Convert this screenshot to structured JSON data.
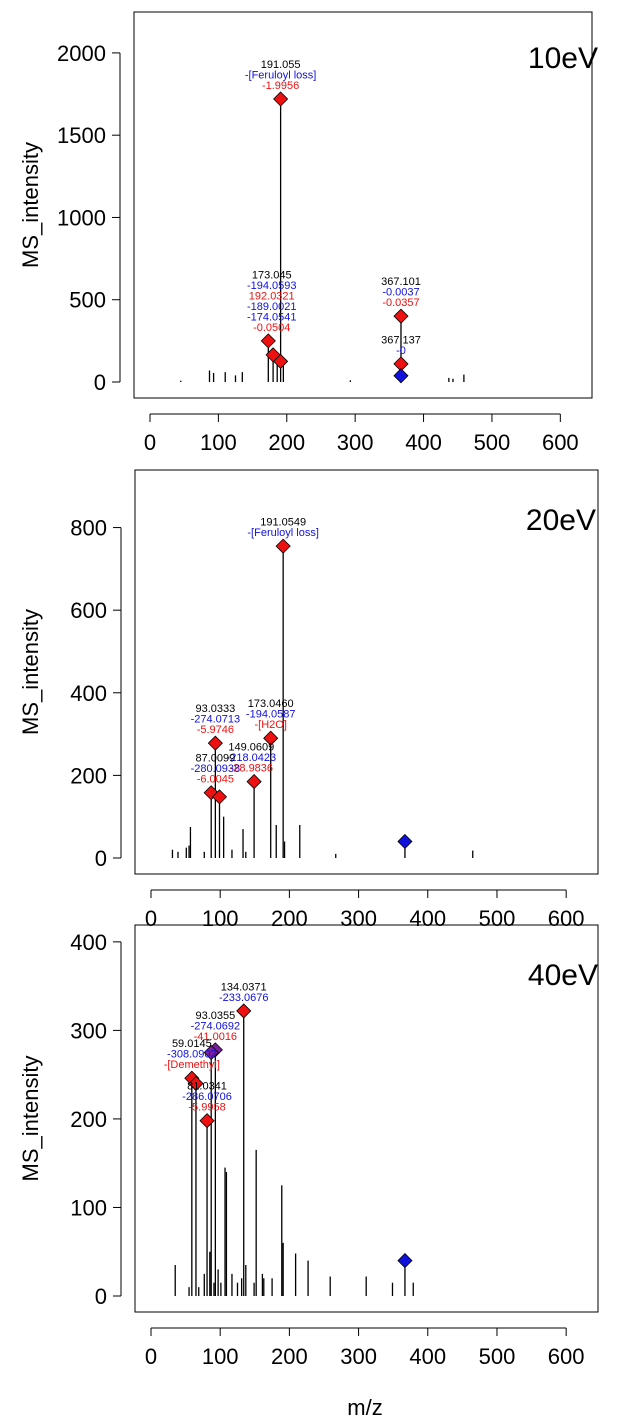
{
  "figure": {
    "xlabel": "m/z",
    "ylabel": "MS_intensity"
  },
  "chart_data": [
    {
      "type": "bar",
      "label": "10eV",
      "xlim": [
        0,
        620
      ],
      "ylim": [
        0,
        2200
      ],
      "xticks": [
        0,
        100,
        200,
        300,
        400,
        500,
        600
      ],
      "yticks": [
        0,
        500,
        1000,
        1500,
        2000
      ],
      "ylabel": "MS_intensity",
      "xlabel": "",
      "peaks": [
        [
          45,
          8
        ],
        [
          87,
          70
        ],
        [
          93,
          55
        ],
        [
          110,
          60
        ],
        [
          125,
          40
        ],
        [
          135,
          60
        ],
        [
          173,
          250
        ],
        [
          180,
          160
        ],
        [
          186,
          120
        ],
        [
          191,
          1720
        ],
        [
          195,
          100
        ],
        [
          293,
          10
        ],
        [
          367,
          400
        ],
        [
          368,
          110
        ],
        [
          437,
          25
        ],
        [
          443,
          20
        ],
        [
          459,
          45
        ]
      ],
      "markers": [
        {
          "x": 191,
          "y": 1720,
          "color": "red"
        },
        {
          "x": 173,
          "y": 250,
          "color": "red"
        },
        {
          "x": 180,
          "y": 165,
          "color": "red"
        },
        {
          "x": 191,
          "y": 125,
          "color": "red"
        },
        {
          "x": 367,
          "y": 400,
          "color": "red"
        },
        {
          "x": 367,
          "y": 110,
          "color": "red"
        },
        {
          "x": 367,
          "y": 38,
          "color": "blue"
        }
      ],
      "annotations": [
        {
          "x": 191,
          "y": 1720,
          "lines": [
            {
              "text": "191.055",
              "color": "black"
            },
            {
              "text": "-[Feruloyl loss]",
              "color": "blue"
            },
            {
              "text": "-1.9956",
              "color": "red"
            }
          ]
        },
        {
          "x": 178,
          "y": 250,
          "lines": [
            {
              "text": "173.045",
              "color": "black"
            },
            {
              "text": "-194.0593",
              "color": "blue"
            },
            {
              "text": "192.0321",
              "color": "red"
            },
            {
              "text": "-189.0021",
              "color": "blue"
            },
            {
              "text": "-174.0541",
              "color": "blue"
            },
            {
              "text": "-0.0504",
              "color": "red"
            }
          ]
        },
        {
          "x": 367,
          "y": 400,
          "lines": [
            {
              "text": "367.101",
              "color": "black"
            },
            {
              "text": "-0.0037",
              "color": "blue"
            },
            {
              "text": "-0.0357",
              "color": "red"
            }
          ]
        },
        {
          "x": 367,
          "y": 110,
          "lines": [
            {
              "text": "367.137",
              "color": "black"
            },
            {
              "text": "-0",
              "color": "blue"
            }
          ]
        }
      ]
    },
    {
      "type": "bar",
      "label": "20eV",
      "xlim": [
        0,
        620
      ],
      "ylim": [
        0,
        920
      ],
      "xticks": [
        0,
        100,
        200,
        300,
        400,
        500,
        600
      ],
      "yticks": [
        0,
        200,
        400,
        600,
        800
      ],
      "ylabel": "MS_intensity",
      "xlabel": "",
      "peaks": [
        [
          31,
          20
        ],
        [
          39,
          15
        ],
        [
          51,
          25
        ],
        [
          55,
          30
        ],
        [
          57,
          75
        ],
        [
          77,
          15
        ],
        [
          87,
          158
        ],
        [
          93,
          275
        ],
        [
          99,
          148
        ],
        [
          105,
          100
        ],
        [
          117,
          20
        ],
        [
          133,
          70
        ],
        [
          137,
          15
        ],
        [
          149,
          185
        ],
        [
          173,
          290
        ],
        [
          181,
          80
        ],
        [
          191,
          755
        ],
        [
          193,
          40
        ],
        [
          215,
          80
        ],
        [
          267,
          10
        ],
        [
          367,
          35
        ],
        [
          465,
          18
        ]
      ],
      "markers": [
        {
          "x": 191,
          "y": 755,
          "color": "red"
        },
        {
          "x": 173,
          "y": 290,
          "color": "red"
        },
        {
          "x": 93,
          "y": 278,
          "color": "red"
        },
        {
          "x": 149,
          "y": 185,
          "color": "red"
        },
        {
          "x": 87,
          "y": 158,
          "color": "red"
        },
        {
          "x": 99,
          "y": 148,
          "color": "red"
        },
        {
          "x": 367,
          "y": 40,
          "color": "blue"
        }
      ],
      "annotations": [
        {
          "x": 191,
          "y": 755,
          "lines": [
            {
              "text": "191.0549",
              "color": "black"
            },
            {
              "text": "-[Feruloyl loss]",
              "color": "blue"
            }
          ]
        },
        {
          "x": 173,
          "y": 290,
          "lines": [
            {
              "text": "173.0460",
              "color": "black"
            },
            {
              "text": "-194.0587",
              "color": "blue"
            },
            {
              "text": "-[H2O]",
              "color": "red"
            }
          ]
        },
        {
          "x": 93,
          "y": 278,
          "lines": [
            {
              "text": "93.0333",
              "color": "black"
            },
            {
              "text": "-274.0713",
              "color": "blue"
            },
            {
              "text": "-5.9746",
              "color": "red"
            }
          ]
        },
        {
          "x": 145,
          "y": 185,
          "lines": [
            {
              "text": "149.0609",
              "color": "black"
            },
            {
              "text": "-218.0423",
              "color": "blue"
            },
            {
              "text": "-28.9836",
              "color": "red"
            }
          ]
        },
        {
          "x": 93,
          "y": 158,
          "lines": [
            {
              "text": "87.0099",
              "color": "black"
            },
            {
              "text": "-280.0938",
              "color": "blue"
            },
            {
              "text": "-6.0045",
              "color": "red"
            }
          ]
        }
      ]
    },
    {
      "type": "bar",
      "label": "40eV",
      "xlim": [
        0,
        620
      ],
      "ylim": [
        0,
        410
      ],
      "xticks": [
        0,
        100,
        200,
        300,
        400,
        500,
        600
      ],
      "yticks": [
        0,
        100,
        200,
        300,
        400
      ],
      "ylabel": "MS_intensity",
      "xlabel": "m/z",
      "peaks": [
        [
          35,
          35
        ],
        [
          55,
          10
        ],
        [
          59,
          245
        ],
        [
          65,
          240
        ],
        [
          69,
          10
        ],
        [
          77,
          25
        ],
        [
          81,
          198
        ],
        [
          85,
          50
        ],
        [
          87,
          280
        ],
        [
          91,
          15
        ],
        [
          93,
          275
        ],
        [
          97,
          30
        ],
        [
          101,
          15
        ],
        [
          107,
          145
        ],
        [
          109,
          140
        ],
        [
          117,
          25
        ],
        [
          125,
          15
        ],
        [
          131,
          20
        ],
        [
          134,
          322
        ],
        [
          137,
          35
        ],
        [
          149,
          15
        ],
        [
          152,
          165
        ],
        [
          161,
          25
        ],
        [
          163,
          20
        ],
        [
          175,
          20
        ],
        [
          189,
          125
        ],
        [
          191,
          60
        ],
        [
          209,
          48
        ],
        [
          227,
          40
        ],
        [
          259,
          22
        ],
        [
          311,
          22
        ],
        [
          349,
          15
        ],
        [
          367,
          40
        ],
        [
          379,
          15
        ]
      ],
      "markers": [
        {
          "x": 134,
          "y": 322,
          "color": "red"
        },
        {
          "x": 93,
          "y": 278,
          "color": "purple"
        },
        {
          "x": 87,
          "y": 275,
          "color": "purple"
        },
        {
          "x": 59,
          "y": 246,
          "color": "red"
        },
        {
          "x": 65,
          "y": 240,
          "color": "red"
        },
        {
          "x": 81,
          "y": 198,
          "color": "red"
        },
        {
          "x": 367,
          "y": 40,
          "color": "blue"
        }
      ],
      "annotations": [
        {
          "x": 134,
          "y": 322,
          "lines": [
            {
              "text": "134.0371",
              "color": "black"
            },
            {
              "text": "-233.0676",
              "color": "blue"
            }
          ]
        },
        {
          "x": 93,
          "y": 278,
          "lines": [
            {
              "text": "93.0355",
              "color": "black"
            },
            {
              "text": "-274.0692",
              "color": "blue"
            },
            {
              "text": "-41.0016",
              "color": "red"
            }
          ]
        },
        {
          "x": 59,
          "y": 246,
          "lines": [
            {
              "text": "59.0145",
              "color": "black"
            },
            {
              "text": "-308.0902",
              "color": "blue"
            },
            {
              "text": "-[Demethyl]",
              "color": "red"
            }
          ]
        },
        {
          "x": 81,
          "y": 198,
          "lines": [
            {
              "text": "81.0341",
              "color": "black"
            },
            {
              "text": "-286.0706",
              "color": "blue"
            },
            {
              "text": "-5.9958",
              "color": "red"
            }
          ]
        }
      ]
    }
  ]
}
